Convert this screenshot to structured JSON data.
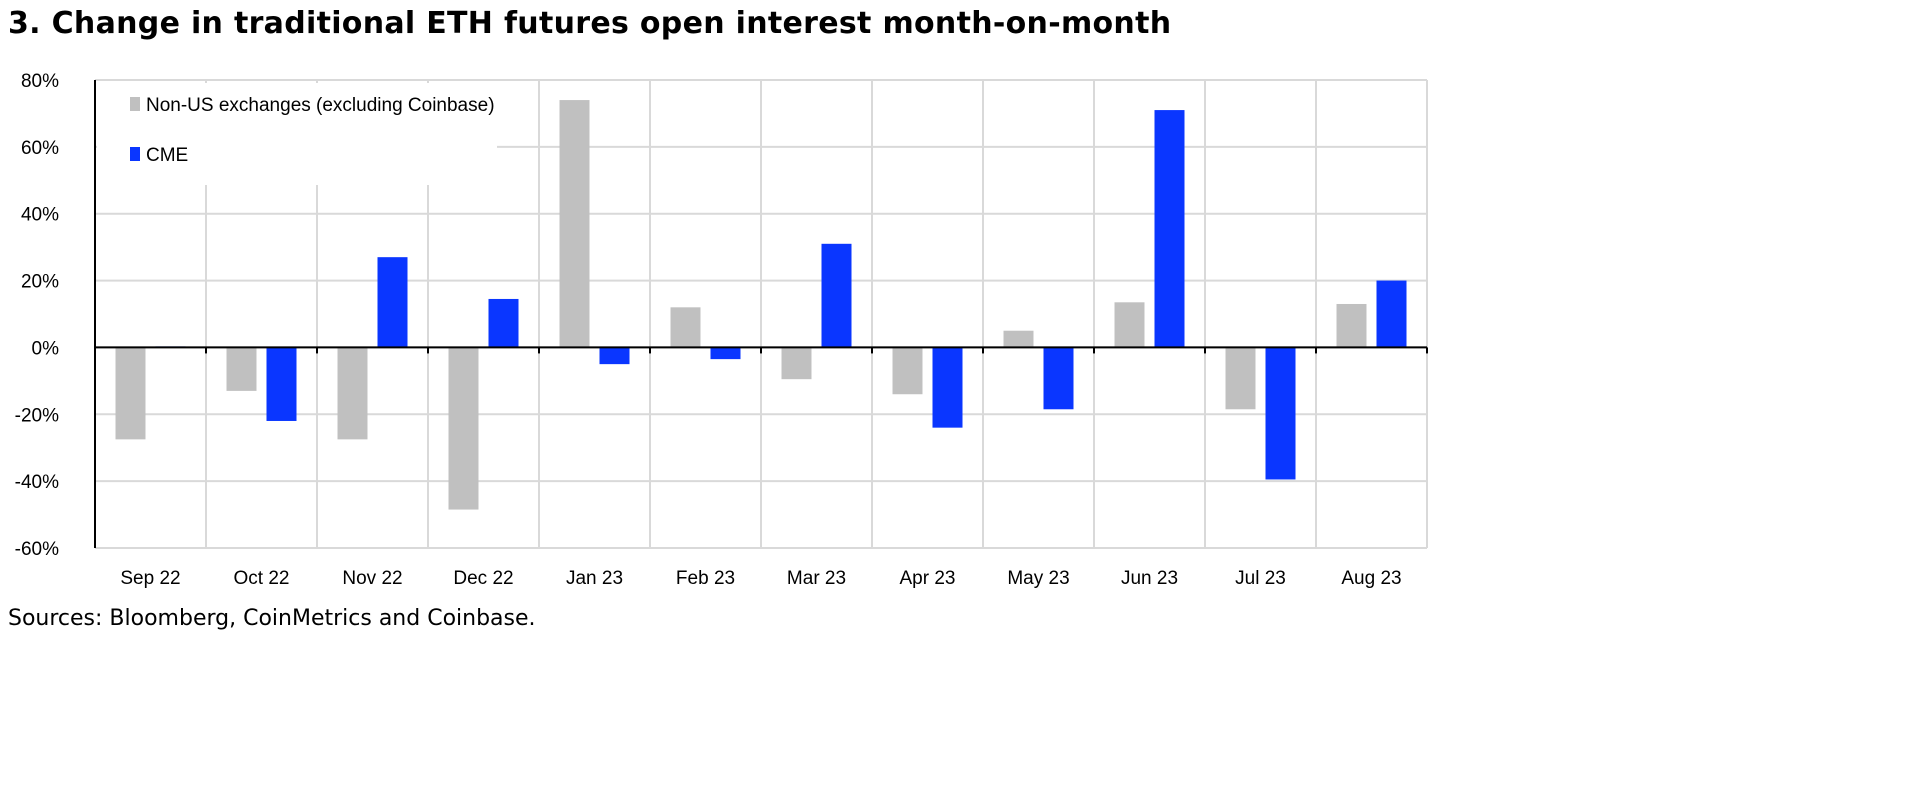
{
  "chart_data": {
    "type": "bar",
    "title": "3. Change in traditional ETH futures open interest month-on-month",
    "source": "Sources: Bloomberg, CoinMetrics and Coinbase.",
    "categories": [
      "Sep 22",
      "Oct 22",
      "Nov 22",
      "Dec 22",
      "Jan 23",
      "Feb 23",
      "Mar 23",
      "Apr 23",
      "May 23",
      "Jun 23",
      "Jul 23",
      "Aug 23"
    ],
    "series": [
      {
        "name": "Non-US exchanges (excluding Coinbase)",
        "color": "#c0c0c0",
        "values": [
          -27.5,
          -13,
          -27.5,
          -48.5,
          74,
          12,
          -9.5,
          -14,
          5,
          13.5,
          -18.5,
          13
        ]
      },
      {
        "name": "CME",
        "color": "#0a36ff",
        "values": [
          0.3,
          -22,
          27,
          14.5,
          -5,
          -3.5,
          31,
          -24,
          -18.5,
          71,
          -39.5,
          20
        ]
      }
    ],
    "ylim": [
      -60,
      80
    ],
    "yticks": [
      "-60%",
      "-40%",
      "-20%",
      "0%",
      "20%",
      "40%",
      "60%",
      "80%"
    ],
    "ytick_values": [
      -60,
      -40,
      -20,
      0,
      20,
      40,
      60,
      80
    ],
    "grid": true,
    "legend": "top-left",
    "xlabel": "",
    "ylabel": ""
  }
}
